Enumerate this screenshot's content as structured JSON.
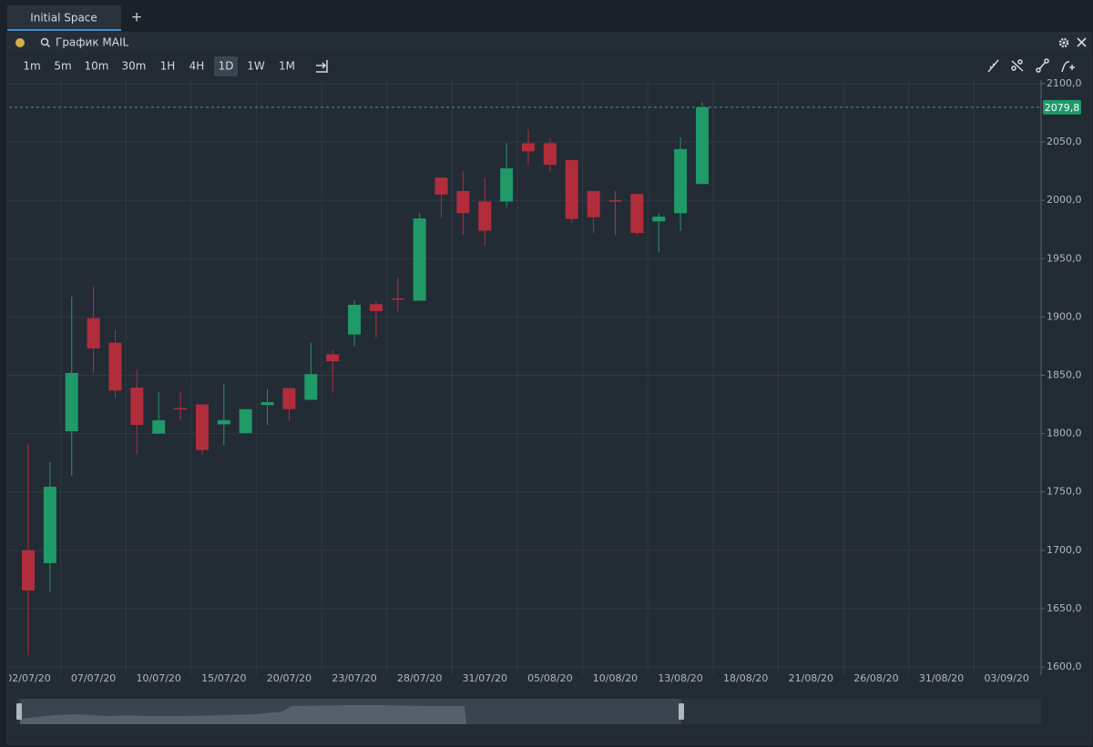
{
  "tabs": {
    "active": "Initial Space",
    "add": "+"
  },
  "panel": {
    "title": "График MAIL"
  },
  "timeframes": {
    "items": [
      "1m",
      "5m",
      "10m",
      "30m",
      "1H",
      "4H",
      "1D",
      "1W",
      "1M"
    ],
    "active": "1D"
  },
  "chart_data": {
    "type": "candlestick",
    "categories": [
      "02/07/20",
      null,
      null,
      "07/07/20",
      null,
      null,
      "10/07/20",
      null,
      null,
      "15/07/20",
      null,
      null,
      "20/07/20",
      null,
      null,
      "23/07/20",
      null,
      null,
      "28/07/20",
      null,
      null,
      "31/07/20",
      null,
      null,
      "05/08/20",
      null,
      null,
      "10/08/20",
      null,
      null,
      "13/08/20",
      null,
      null,
      "18/08/20",
      null,
      null,
      "21/08/20",
      null,
      null,
      "26/08/20",
      null,
      null,
      "31/08/20",
      null,
      null,
      "03/09/20"
    ],
    "open": [
      1700,
      1689,
      1802,
      1899,
      1878,
      1839.5,
      1800,
      1822,
      1825,
      1808,
      1800.5,
      1824.5,
      1839,
      1829,
      1868,
      1885,
      1911,
      1916,
      1914,
      2019.5,
      2008,
      1999,
      1999,
      2049,
      2049,
      2034.5,
      2008,
      2000,
      2005.5,
      1982,
      1989,
      2014,
      null,
      null,
      null,
      null,
      null,
      null,
      null,
      null,
      null,
      null,
      null,
      null,
      null,
      null
    ],
    "high": [
      1791,
      1775.5,
      1917.5,
      1926,
      1889,
      1855,
      1836,
      1836,
      1825,
      1843,
      1821,
      1838,
      1839,
      1878,
      1872,
      1914,
      1913.5,
      1934,
      1989,
      2019.5,
      2025,
      2019.5,
      2049,
      2061,
      2053,
      2034.5,
      2008,
      2008,
      2005.5,
      1989,
      2054,
      2084,
      null,
      null,
      null,
      null,
      null,
      null,
      null,
      null,
      null,
      null,
      null,
      null,
      null,
      null
    ],
    "low": [
      1610,
      1664,
      1764,
      1852,
      1830,
      1782,
      1800,
      1811,
      1782,
      1790,
      1800,
      1807.5,
      1811,
      1829,
      1835,
      1875,
      1882,
      1905,
      1914,
      1985,
      1970.5,
      1961,
      1994,
      2030.5,
      2025,
      1980.5,
      1972,
      1970,
      1970,
      1955.5,
      1974,
      2014,
      null,
      null,
      null,
      null,
      null,
      null,
      null,
      null,
      null,
      null,
      null,
      null,
      null,
      null
    ],
    "close": [
      1665.5,
      1754.5,
      1852,
      1873,
      1837,
      1807.5,
      1811.5,
      1821,
      1786,
      1811.5,
      1821,
      1827,
      1821,
      1851,
      1862,
      1910.5,
      1905,
      1915,
      1984.5,
      2005,
      1989,
      1974,
      2027.5,
      2042,
      2030.5,
      1984,
      1985.5,
      1999,
      1972,
      1986,
      2044,
      2079.8,
      null,
      null,
      null,
      null,
      null,
      null,
      null,
      null,
      null,
      null,
      null,
      null,
      null,
      null
    ],
    "up_color": "#1f9a68",
    "down_color": "#b22d3c",
    "ylim": [
      1600,
      2100
    ],
    "yticks": [
      {
        "value": 1600,
        "label": "1600,0"
      },
      {
        "value": 1650,
        "label": "1650,0"
      },
      {
        "value": 1700,
        "label": "1700,0"
      },
      {
        "value": 1750,
        "label": "1750,0"
      },
      {
        "value": 1800,
        "label": "1800,0"
      },
      {
        "value": 1850,
        "label": "1850,0"
      },
      {
        "value": 1900,
        "label": "1900,0"
      },
      {
        "value": 1950,
        "label": "1950,0"
      },
      {
        "value": 2000,
        "label": "2000,0"
      },
      {
        "value": 2050,
        "label": "2050,0"
      },
      {
        "value": 2100,
        "label": "2100,0"
      }
    ],
    "grid": true,
    "last_price": {
      "value": 2079.8,
      "label": "2079,8"
    }
  }
}
